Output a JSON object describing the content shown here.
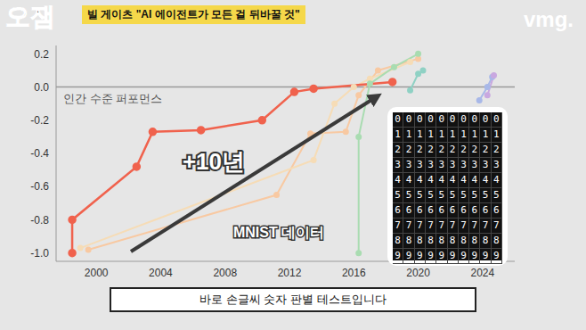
{
  "header": {
    "logo": "오잼",
    "title": "빌 게이츠 \"AI 에이전트가 모든 걸 뒤바꿀 것\"",
    "brand": "vmg."
  },
  "chart_data": {
    "type": "line",
    "xlim": [
      1997.5,
      2026
    ],
    "xticks": [
      2000,
      2004,
      2008,
      2012,
      2016,
      2020,
      2024
    ],
    "ylim": [
      -1.05,
      0.25
    ],
    "yticks": [
      0.2,
      {
        "value": 0,
        "label": "0.0"
      },
      -0.2,
      -0.4,
      -0.6,
      -0.8,
      {
        "value": -1,
        "label": "-1.0"
      }
    ],
    "grid": false,
    "reference_line": {
      "y": 0,
      "label": "인간 수준 퍼포먼스"
    },
    "annotations": [
      "+10년",
      "MNIST 데이터"
    ],
    "series": [
      {
        "color": "#f8c9a2",
        "marker": "circle",
        "x": [
          1999.5,
          2011.2,
          2013.3,
          2015.5,
          2016.3,
          2017.5,
          2020
        ],
        "values": [
          -0.98,
          -0.65,
          -0.28,
          -0.27,
          -0.05,
          0.1,
          0.17
        ]
      },
      {
        "color": "#f6dcb6",
        "marker": "circle",
        "x": [
          1999,
          2013.5,
          2014.8,
          2016,
          2017,
          2019.5
        ],
        "values": [
          -0.97,
          -0.44,
          -0.1,
          0.0,
          0.05,
          0.15
        ]
      },
      {
        "color": "#a9dcb1",
        "marker": "circle",
        "x": [
          2016.3,
          2016.3,
          2017,
          2018.5,
          2020
        ],
        "values": [
          -1.0,
          -0.3,
          0.02,
          0.12,
          0.2
        ]
      },
      {
        "color": "#8fd1c4",
        "marker": "circle",
        "x": [
          2019.5,
          2020,
          2020.3
        ],
        "values": [
          -0.02,
          0.08,
          0.1
        ]
      },
      {
        "color": "#a8b8e8",
        "marker": "circle",
        "x": [
          2023.8,
          2024.3,
          2024.6
        ],
        "values": [
          -0.08,
          0.0,
          0.06
        ]
      },
      {
        "color": "#c9a8e0",
        "marker": "circle",
        "x": [
          2024.3,
          2024.7
        ],
        "values": [
          -0.05,
          0.07
        ]
      },
      {
        "color": "#f0624d",
        "marker": "circle",
        "x": [
          1998.5,
          1998.5,
          2002.5,
          2003.5,
          2006.5,
          2010.3,
          2012.3,
          2013.5,
          2018.4
        ],
        "values": [
          -1.0,
          -0.8,
          -0.48,
          -0.27,
          -0.26,
          -0.2,
          -0.03,
          -0.01,
          0.03
        ]
      }
    ]
  },
  "inset": {
    "digits": [
      "0",
      "1",
      "2",
      "3",
      "4",
      "5",
      "6",
      "7",
      "8",
      "9"
    ]
  },
  "caption": "바로 손글씨 숫자 판별 테스트입니다"
}
